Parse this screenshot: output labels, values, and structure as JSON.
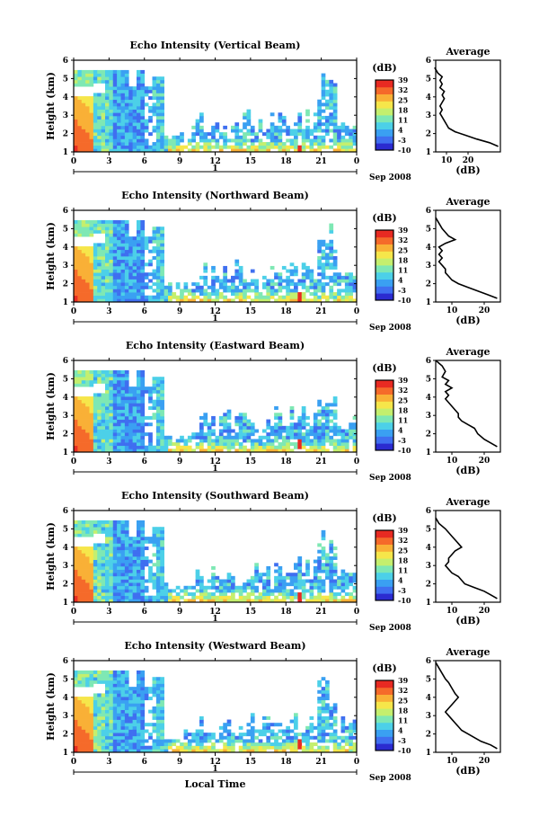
{
  "figure": {
    "xlabel_common": "Local Time",
    "date_label": "Sep 2008",
    "day_label": "1",
    "average_title": "Average",
    "average_xlabel": "(dB)",
    "colorbar_unit": "(dB)",
    "ylabel": "Height (km)"
  },
  "colors": {
    "scale": [
      "#2b2bd0",
      "#3f6ff0",
      "#3aa0f2",
      "#4cd0e8",
      "#7ee8b4",
      "#c4ef6e",
      "#f6e64a",
      "#f9b036",
      "#f56a2a",
      "#e82a22"
    ]
  },
  "chart_data": [
    {
      "type": "heatmap",
      "title": "Echo Intensity (Vertical Beam)",
      "ylabel": "Height (km)",
      "xlabel": "",
      "x_ticks": [
        "0",
        "3",
        "6",
        "9",
        "12",
        "15",
        "18",
        "21",
        "0"
      ],
      "y_ticks": [
        "1",
        "2",
        "3",
        "4",
        "5",
        "6"
      ],
      "ylim": [
        1,
        6
      ],
      "xlim_hours": [
        0,
        24
      ],
      "colorbar": {
        "label": "(dB)",
        "ticks": [
          "39",
          "32",
          "25",
          "18",
          "11",
          "4",
          "-3",
          "-10"
        ],
        "range": [
          -10,
          39
        ]
      },
      "average": {
        "title": "Average",
        "xlabel": "(dB)",
        "x_ticks": [
          "10",
          "20"
        ],
        "xlim": [
          5,
          35
        ],
        "points": [
          [
            4.5,
            5.6
          ],
          [
            6,
            5.3
          ],
          [
            8,
            5.1
          ],
          [
            7,
            4.9
          ],
          [
            8,
            4.7
          ],
          [
            7,
            4.5
          ],
          [
            9,
            4.3
          ],
          [
            8,
            4.1
          ],
          [
            9,
            3.9
          ],
          [
            8,
            3.7
          ],
          [
            7,
            3.5
          ],
          [
            8,
            3.3
          ],
          [
            7,
            3.1
          ],
          [
            8,
            2.9
          ],
          [
            9,
            2.7
          ],
          [
            10,
            2.5
          ],
          [
            11,
            2.3
          ],
          [
            14,
            2.1
          ],
          [
            19,
            1.9
          ],
          [
            24,
            1.7
          ],
          [
            30,
            1.5
          ],
          [
            34,
            1.3
          ]
        ]
      }
    },
    {
      "type": "heatmap",
      "title": "Echo Intensity (Northward Beam)",
      "ylabel": "Height (km)",
      "xlabel": "",
      "x_ticks": [
        "0",
        "3",
        "6",
        "9",
        "12",
        "15",
        "18",
        "21",
        "0"
      ],
      "y_ticks": [
        "1",
        "2",
        "3",
        "4",
        "5",
        "6"
      ],
      "ylim": [
        1,
        6
      ],
      "xlim_hours": [
        0,
        24
      ],
      "colorbar": {
        "label": "(dB)",
        "ticks": [
          "39",
          "32",
          "25",
          "18",
          "11",
          "4",
          "-3",
          "-10"
        ],
        "range": [
          -10,
          39
        ]
      },
      "average": {
        "title": "Average",
        "xlabel": "(dB)",
        "x_ticks": [
          "10",
          "20"
        ],
        "xlim": [
          5,
          25
        ],
        "points": [
          [
            5,
            5.6
          ],
          [
            6,
            5.3
          ],
          [
            7,
            5.0
          ],
          [
            8,
            4.8
          ],
          [
            9,
            4.6
          ],
          [
            11,
            4.4
          ],
          [
            8,
            4.2
          ],
          [
            6,
            4.0
          ],
          [
            7,
            3.8
          ],
          [
            6,
            3.6
          ],
          [
            7,
            3.4
          ],
          [
            6,
            3.2
          ],
          [
            7,
            3.0
          ],
          [
            8,
            2.8
          ],
          [
            8,
            2.6
          ],
          [
            9,
            2.4
          ],
          [
            10,
            2.2
          ],
          [
            12,
            2.0
          ],
          [
            15,
            1.8
          ],
          [
            18,
            1.6
          ],
          [
            21,
            1.4
          ],
          [
            24,
            1.2
          ]
        ]
      }
    },
    {
      "type": "heatmap",
      "title": "Echo Intensity (Eastward Beam)",
      "ylabel": "Height (km)",
      "xlabel": "",
      "x_ticks": [
        "0",
        "3",
        "6",
        "9",
        "12",
        "15",
        "18",
        "21",
        "0"
      ],
      "y_ticks": [
        "1",
        "2",
        "3",
        "4",
        "5",
        "6"
      ],
      "ylim": [
        1,
        6
      ],
      "xlim_hours": [
        0,
        24
      ],
      "colorbar": {
        "label": "(dB)",
        "ticks": [
          "39",
          "32",
          "25",
          "18",
          "11",
          "4",
          "-3",
          "-10"
        ],
        "range": [
          -10,
          39
        ]
      },
      "average": {
        "title": "Average",
        "xlabel": "(dB)",
        "x_ticks": [
          "10",
          "20"
        ],
        "xlim": [
          5,
          25
        ],
        "points": [
          [
            5,
            6.0
          ],
          [
            7,
            5.7
          ],
          [
            8,
            5.4
          ],
          [
            7,
            5.1
          ],
          [
            9,
            4.9
          ],
          [
            8,
            4.7
          ],
          [
            10,
            4.5
          ],
          [
            8,
            4.3
          ],
          [
            9,
            4.1
          ],
          [
            8,
            3.9
          ],
          [
            9,
            3.7
          ],
          [
            10,
            3.5
          ],
          [
            11,
            3.3
          ],
          [
            12,
            3.1
          ],
          [
            12,
            2.9
          ],
          [
            13,
            2.7
          ],
          [
            15,
            2.5
          ],
          [
            17,
            2.3
          ],
          [
            18,
            2.0
          ],
          [
            20,
            1.7
          ],
          [
            22,
            1.5
          ],
          [
            24,
            1.3
          ]
        ]
      }
    },
    {
      "type": "heatmap",
      "title": "Echo Intensity (Southward Beam)",
      "ylabel": "Height (km)",
      "xlabel": "",
      "x_ticks": [
        "0",
        "3",
        "6",
        "9",
        "12",
        "15",
        "18",
        "21",
        "0"
      ],
      "y_ticks": [
        "1",
        "2",
        "3",
        "4",
        "5",
        "6"
      ],
      "ylim": [
        1,
        6
      ],
      "xlim_hours": [
        0,
        24
      ],
      "colorbar": {
        "label": "(dB)",
        "ticks": [
          "39",
          "32",
          "25",
          "18",
          "11",
          "4",
          "-3",
          "-10"
        ],
        "range": [
          -10,
          39
        ]
      },
      "average": {
        "title": "Average",
        "xlabel": "(dB)",
        "x_ticks": [
          "10",
          "20"
        ],
        "xlim": [
          5,
          25
        ],
        "points": [
          [
            5,
            5.6
          ],
          [
            6,
            5.3
          ],
          [
            8,
            5.0
          ],
          [
            9,
            4.8
          ],
          [
            10,
            4.6
          ],
          [
            11,
            4.4
          ],
          [
            12,
            4.2
          ],
          [
            13,
            4.0
          ],
          [
            11,
            3.8
          ],
          [
            10,
            3.6
          ],
          [
            9,
            3.4
          ],
          [
            9,
            3.2
          ],
          [
            8,
            3.0
          ],
          [
            9,
            2.8
          ],
          [
            10,
            2.6
          ],
          [
            12,
            2.4
          ],
          [
            13,
            2.2
          ],
          [
            14,
            2.0
          ],
          [
            17,
            1.8
          ],
          [
            20,
            1.6
          ],
          [
            22,
            1.4
          ],
          [
            24,
            1.2
          ]
        ]
      }
    },
    {
      "type": "heatmap",
      "title": "Echo Intensity (Westward Beam)",
      "ylabel": "Height (km)",
      "xlabel": "Local Time",
      "x_ticks": [
        "0",
        "3",
        "6",
        "9",
        "12",
        "15",
        "18",
        "21",
        "0"
      ],
      "y_ticks": [
        "1",
        "2",
        "3",
        "4",
        "5",
        "6"
      ],
      "ylim": [
        1,
        6
      ],
      "xlim_hours": [
        0,
        24
      ],
      "colorbar": {
        "label": "(dB)",
        "ticks": [
          "39",
          "32",
          "25",
          "18",
          "11",
          "4",
          "-3",
          "-10"
        ],
        "range": [
          -10,
          39
        ]
      },
      "average": {
        "title": "Average",
        "xlabel": "(dB)",
        "x_ticks": [
          "10",
          "20"
        ],
        "xlim": [
          5,
          25
        ],
        "points": [
          [
            5,
            5.9
          ],
          [
            6,
            5.6
          ],
          [
            7,
            5.3
          ],
          [
            8,
            5.0
          ],
          [
            9,
            4.8
          ],
          [
            10,
            4.5
          ],
          [
            11,
            4.2
          ],
          [
            12,
            4.0
          ],
          [
            11,
            3.8
          ],
          [
            10,
            3.6
          ],
          [
            9,
            3.4
          ],
          [
            8,
            3.2
          ],
          [
            9,
            3.0
          ],
          [
            10,
            2.8
          ],
          [
            11,
            2.6
          ],
          [
            12,
            2.4
          ],
          [
            13,
            2.2
          ],
          [
            15,
            2.0
          ],
          [
            17,
            1.8
          ],
          [
            19,
            1.6
          ],
          [
            22,
            1.4
          ],
          [
            24,
            1.2
          ]
        ]
      }
    }
  ]
}
